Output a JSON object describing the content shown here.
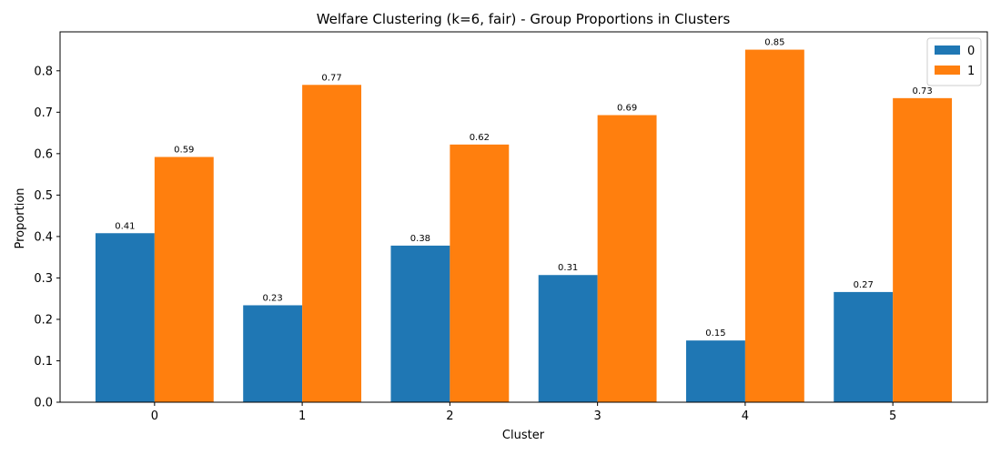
{
  "chart_data": {
    "type": "bar",
    "title": "Welfare Clustering (k=6, fair) - Group Proportions in Clusters",
    "xlabel": "Cluster",
    "ylabel": "Proportion",
    "categories": [
      "0",
      "1",
      "2",
      "3",
      "4",
      "5"
    ],
    "ylim": [
      0,
      0.894
    ],
    "yticks": [
      0.0,
      0.1,
      0.2,
      0.3,
      0.4,
      0.5,
      0.6,
      0.7,
      0.8
    ],
    "ytick_labels": [
      "0.0",
      "0.1",
      "0.2",
      "0.3",
      "0.4",
      "0.5",
      "0.6",
      "0.7",
      "0.8"
    ],
    "grid": false,
    "legend": "top-right",
    "series": [
      {
        "name": "0",
        "color": "#1f77b4",
        "values": [
          0.408,
          0.234,
          0.378,
          0.307,
          0.149,
          0.266
        ],
        "labels": [
          "0.41",
          "0.23",
          "0.38",
          "0.31",
          "0.15",
          "0.27"
        ]
      },
      {
        "name": "1",
        "color": "#ff7f0e",
        "values": [
          0.592,
          0.766,
          0.622,
          0.693,
          0.851,
          0.734
        ],
        "labels": [
          "0.59",
          "0.77",
          "0.62",
          "0.69",
          "0.85",
          "0.73"
        ]
      }
    ]
  }
}
